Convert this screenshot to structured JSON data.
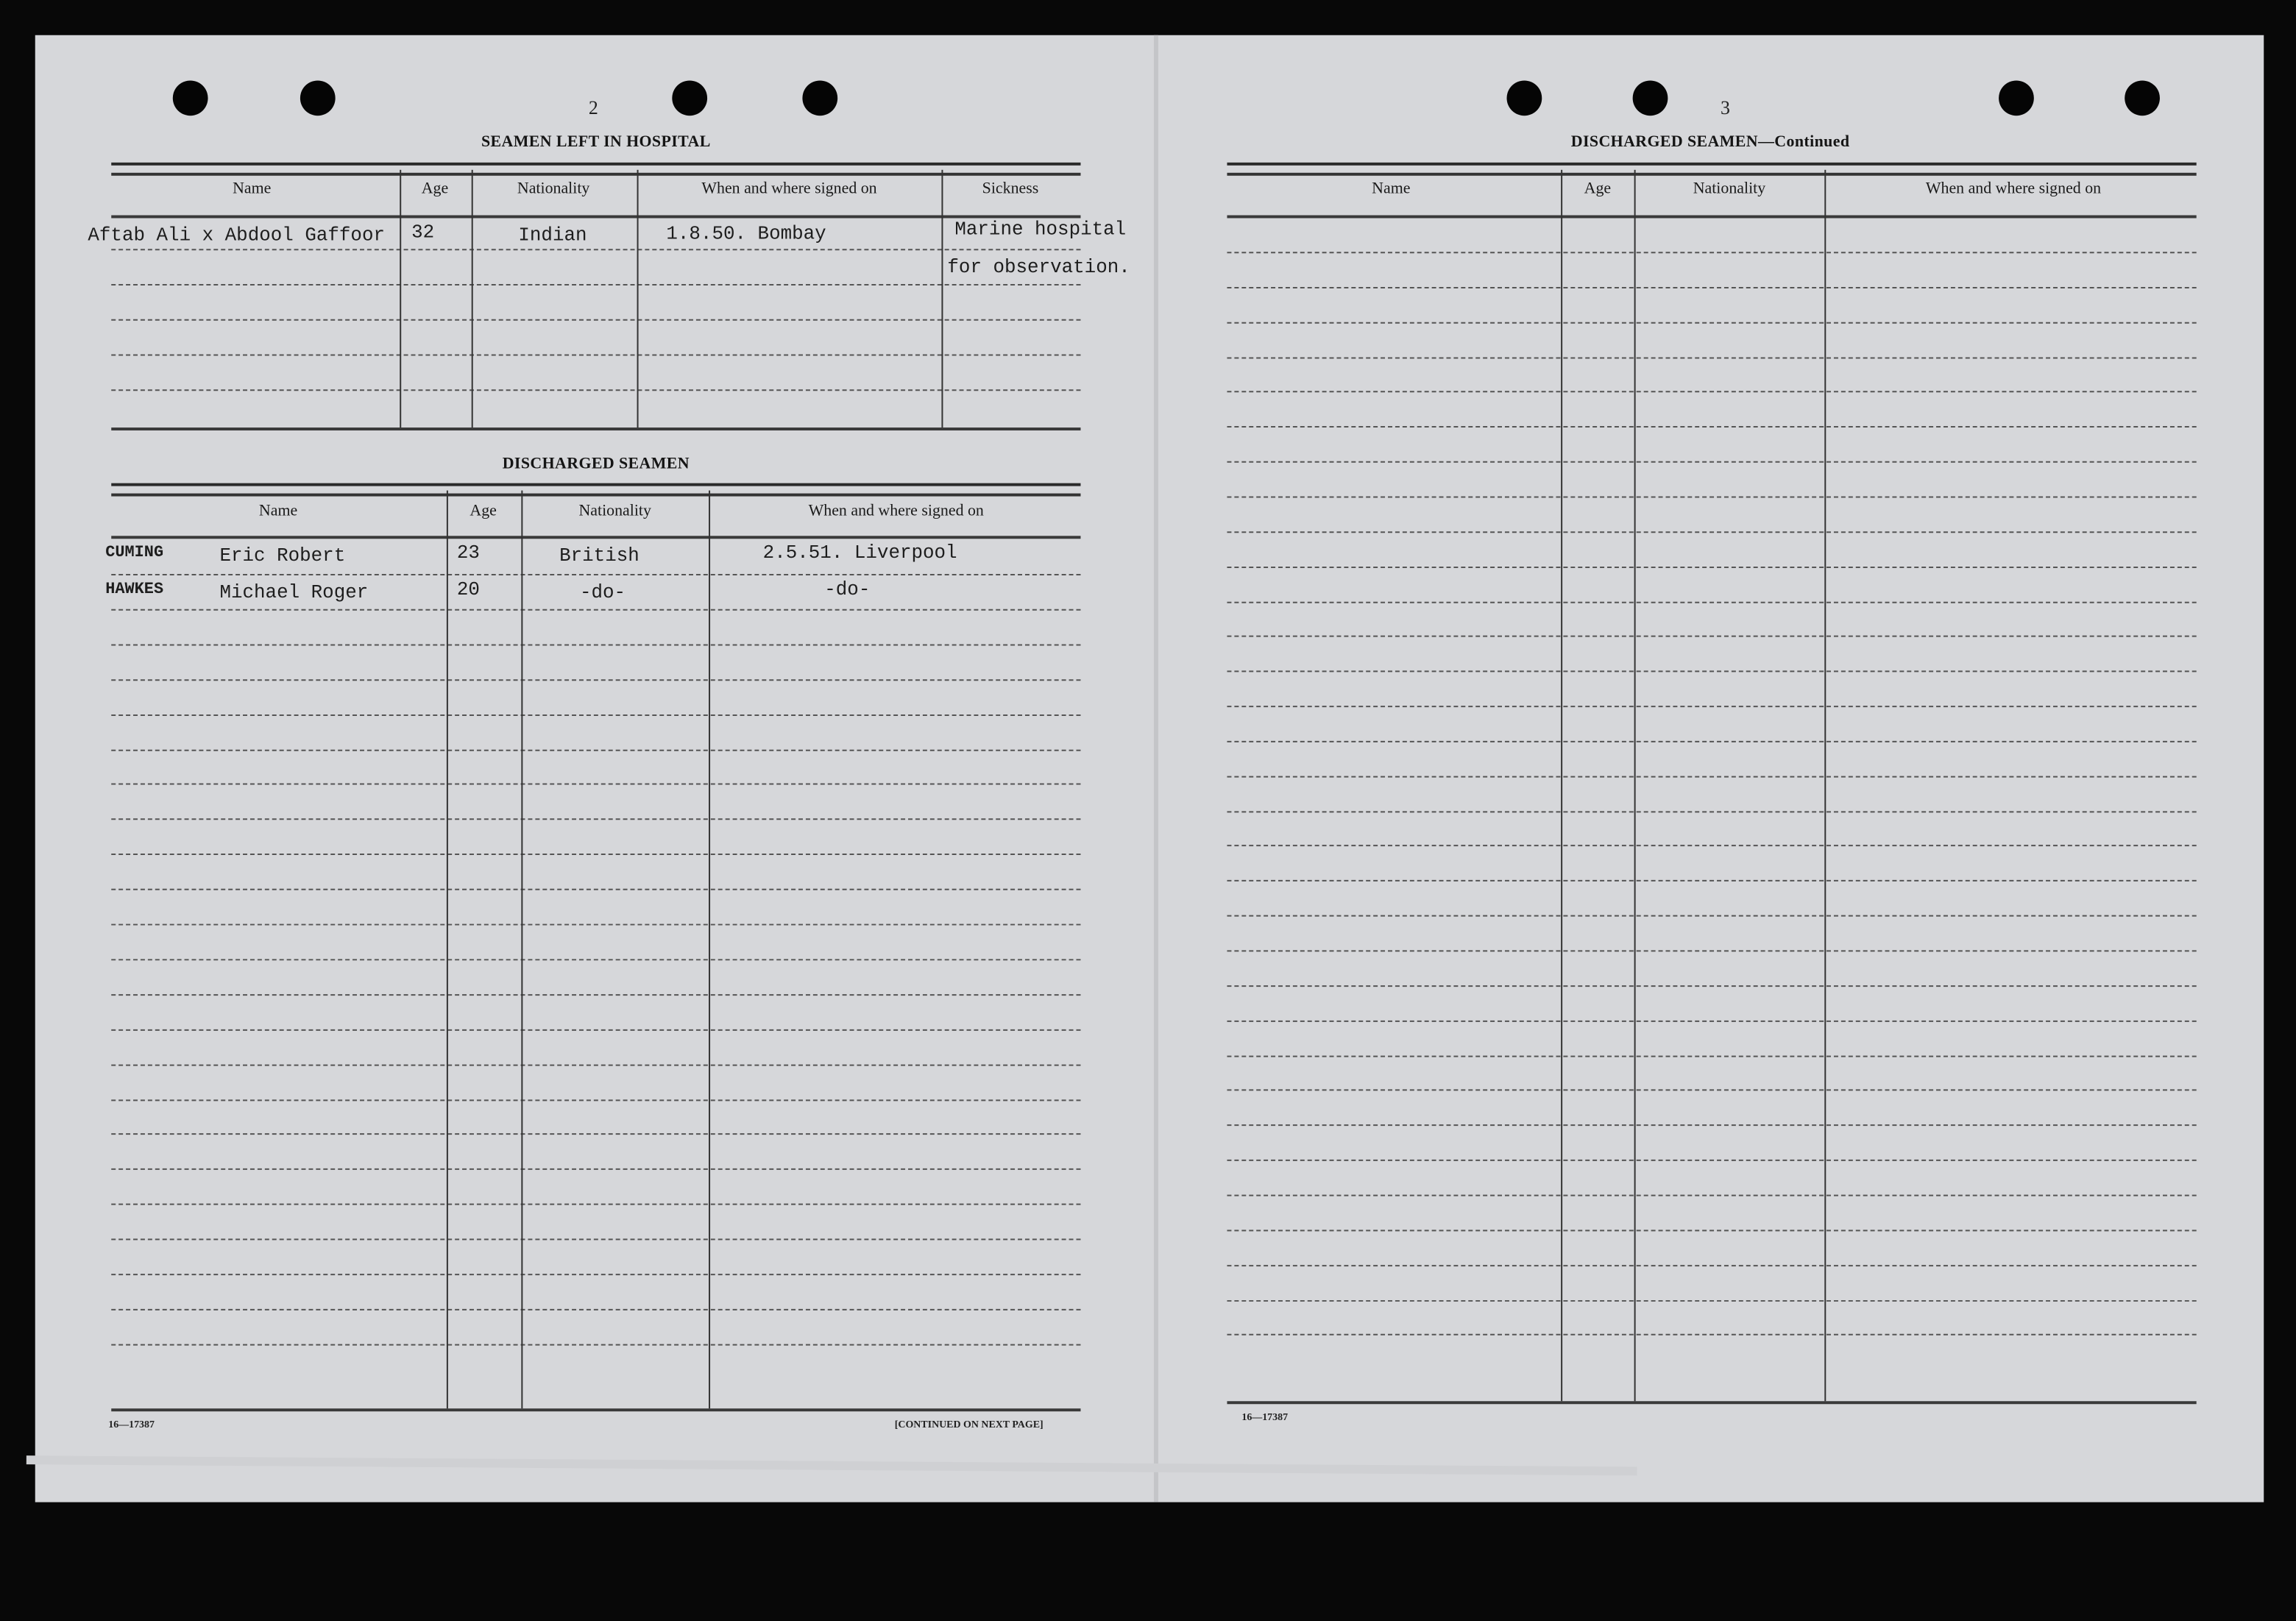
{
  "left_page": {
    "page_number": "2",
    "hospital": {
      "title": "SEAMEN LEFT IN HOSPITAL",
      "columns": [
        "Name",
        "Age",
        "Nationality",
        "When and where signed on",
        "Sickness"
      ],
      "rows": [
        {
          "name": "Aftab Ali x Abdool Gaffoor",
          "age": "32",
          "nationality": "Indian",
          "signed_on": "1.8.50.  Bombay",
          "sickness": "Marine hospital"
        },
        {
          "name": "",
          "age": "",
          "nationality": "",
          "signed_on": "",
          "sickness": "for observation."
        }
      ]
    },
    "discharged": {
      "title": "DISCHARGED SEAMEN",
      "columns": [
        "Name",
        "Age",
        "Nationality",
        "When and where signed on"
      ],
      "rows": [
        {
          "surname": "CUMING",
          "given": "Eric Robert",
          "age": "23",
          "nationality": "British",
          "signed_on": "2.5.51. Liverpool"
        },
        {
          "surname": "HAWKES",
          "given": "Michael Roger",
          "age": "20",
          "nationality": "-do-",
          "signed_on": "-do-"
        }
      ]
    },
    "form_number": "16—17387",
    "continued": "[CONTINUED ON NEXT PAGE]"
  },
  "right_page": {
    "page_number": "3",
    "title": "DISCHARGED SEAMEN—Continued",
    "columns": [
      "Name",
      "Age",
      "Nationality",
      "When and where signed on"
    ],
    "form_number": "16—17387"
  }
}
